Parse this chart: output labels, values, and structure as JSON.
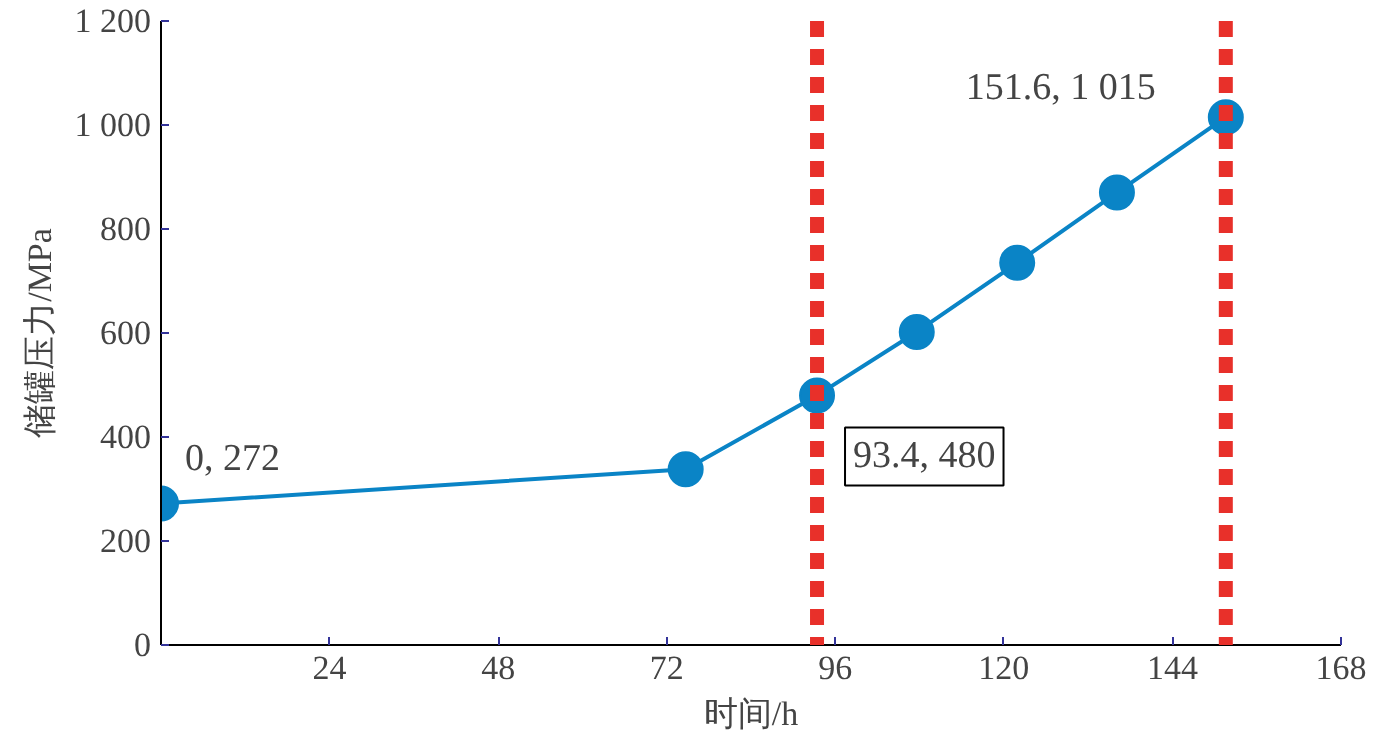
{
  "chart_data": {
    "type": "line",
    "xlabel": "时间/h",
    "ylabel": "储罐压力/MPa",
    "series": [
      {
        "color": "#0a84c6",
        "x": [
          0,
          74.7,
          93.4,
          107.6,
          121.9,
          136.1,
          151.6
        ],
        "values": [
          272,
          338,
          480,
          602,
          735,
          870,
          1015
        ]
      }
    ],
    "xlim": [
      0,
      168
    ],
    "xticks": [
      24,
      48,
      72,
      96,
      120,
      144,
      168
    ],
    "ylim": [
      0,
      1200
    ],
    "yticks": [
      0,
      200,
      400,
      600,
      800,
      {
        "value": 1000,
        "label": "1 000"
      },
      {
        "value": 1200,
        "label": "1 200"
      }
    ],
    "marker": "circle",
    "line_style": "solid",
    "grid": false,
    "ref_lines": [
      {
        "axis": "x",
        "value": 93.4,
        "label": null,
        "color": "#e8302a",
        "line_style": "dashed"
      },
      {
        "axis": "x",
        "value": 151.6,
        "label": null,
        "color": "#e8302a",
        "line_style": "dashed"
      }
    ],
    "annotations": [
      {
        "text": "0, 272",
        "x": 0,
        "y": 272
      },
      {
        "text": "93.4, 480",
        "x": 93.4,
        "y": 480
      },
      {
        "text": "151.6, 1 015",
        "x": 151.6,
        "y": 1015
      }
    ]
  }
}
